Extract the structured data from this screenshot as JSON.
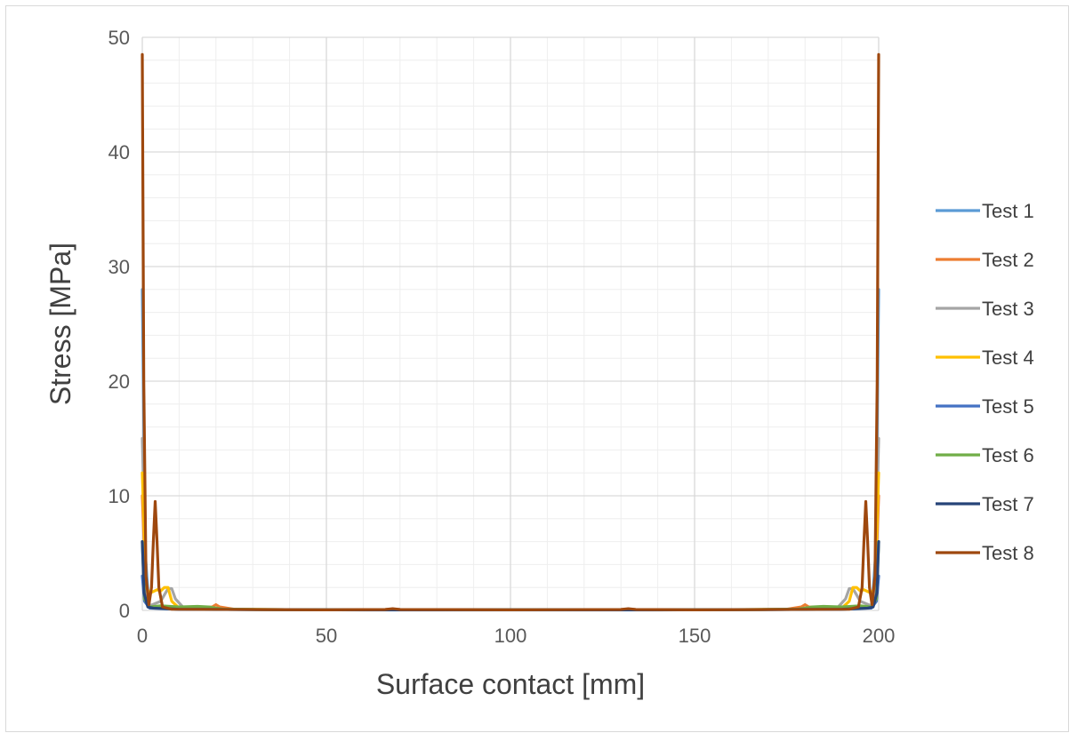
{
  "chart_data": {
    "type": "line",
    "title": "",
    "xlabel": "Surface contact [mm]",
    "ylabel": "Stress [MPa]",
    "xlim": [
      0,
      200
    ],
    "ylim": [
      0,
      50
    ],
    "xticks": [
      0,
      50,
      100,
      150,
      200
    ],
    "yticks": [
      0,
      10,
      20,
      30,
      40,
      50
    ],
    "x_tick_labels": [
      "0",
      "50",
      "100",
      "150",
      "200"
    ],
    "y_tick_labels": [
      "0",
      "10",
      "20",
      "30",
      "40",
      "50"
    ],
    "grid": {
      "major": true,
      "minor": true
    },
    "legend": {
      "placement": "right"
    },
    "series": [
      {
        "name": "Test 1",
        "color": "#5b9bd5",
        "points": [
          [
            0,
            28
          ],
          [
            0.8,
            5
          ],
          [
            1.8,
            0.4
          ],
          [
            5,
            0.15
          ],
          [
            10,
            0.1
          ],
          [
            20,
            0.08
          ],
          [
            40,
            0.05
          ],
          [
            60,
            0.04
          ],
          [
            100,
            0.04
          ],
          [
            140,
            0.04
          ],
          [
            160,
            0.05
          ],
          [
            180,
            0.08
          ],
          [
            190,
            0.1
          ],
          [
            195,
            0.15
          ],
          [
            198.2,
            0.4
          ],
          [
            199.2,
            5
          ],
          [
            200,
            28
          ]
        ]
      },
      {
        "name": "Test 2",
        "color": "#ed7d31",
        "points": [
          [
            0,
            10
          ],
          [
            1,
            1.5
          ],
          [
            2,
            0.3
          ],
          [
            8,
            0.2
          ],
          [
            15,
            0.25
          ],
          [
            19,
            0.3
          ],
          [
            20,
            0.5
          ],
          [
            21,
            0.3
          ],
          [
            25,
            0.1
          ],
          [
            40,
            0.05
          ],
          [
            66,
            0.08
          ],
          [
            68,
            0.12
          ],
          [
            70,
            0.08
          ],
          [
            100,
            0.05
          ],
          [
            130,
            0.08
          ],
          [
            132,
            0.12
          ],
          [
            134,
            0.08
          ],
          [
            160,
            0.05
          ],
          [
            175,
            0.1
          ],
          [
            179,
            0.3
          ],
          [
            180,
            0.5
          ],
          [
            181,
            0.3
          ],
          [
            185,
            0.25
          ],
          [
            192,
            0.2
          ],
          [
            198,
            0.3
          ],
          [
            199,
            1.5
          ],
          [
            200,
            10
          ]
        ]
      },
      {
        "name": "Test 3",
        "color": "#a5a5a5",
        "points": [
          [
            0,
            15
          ],
          [
            1,
            2
          ],
          [
            2,
            0.4
          ],
          [
            5,
            0.8
          ],
          [
            7,
            1.9
          ],
          [
            8,
            1.9
          ],
          [
            9,
            1
          ],
          [
            11,
            0.3
          ],
          [
            20,
            0.1
          ],
          [
            50,
            0.05
          ],
          [
            100,
            0.05
          ],
          [
            150,
            0.05
          ],
          [
            180,
            0.1
          ],
          [
            189,
            0.3
          ],
          [
            191,
            1
          ],
          [
            192,
            1.9
          ],
          [
            193,
            1.9
          ],
          [
            195,
            0.8
          ],
          [
            198,
            0.4
          ],
          [
            199,
            2
          ],
          [
            200,
            15
          ]
        ]
      },
      {
        "name": "Test 4",
        "color": "#ffc000",
        "points": [
          [
            0,
            12
          ],
          [
            1,
            2
          ],
          [
            2,
            1.5
          ],
          [
            4,
            1.8
          ],
          [
            5,
            1.7
          ],
          [
            6,
            2
          ],
          [
            7,
            2
          ],
          [
            8,
            0.8
          ],
          [
            10,
            0.2
          ],
          [
            20,
            0.1
          ],
          [
            50,
            0.05
          ],
          [
            100,
            0.05
          ],
          [
            150,
            0.05
          ],
          [
            180,
            0.1
          ],
          [
            190,
            0.2
          ],
          [
            192,
            0.8
          ],
          [
            193,
            2
          ],
          [
            194,
            2
          ],
          [
            195,
            1.7
          ],
          [
            196,
            1.8
          ],
          [
            198,
            1.5
          ],
          [
            199,
            2
          ],
          [
            200,
            12
          ]
        ]
      },
      {
        "name": "Test 5",
        "color": "#4472c4",
        "points": [
          [
            0,
            3
          ],
          [
            0.6,
            0.8
          ],
          [
            2,
            0.2
          ],
          [
            10,
            0.1
          ],
          [
            50,
            0.05
          ],
          [
            100,
            0.05
          ],
          [
            150,
            0.05
          ],
          [
            190,
            0.1
          ],
          [
            198,
            0.2
          ],
          [
            199.4,
            0.8
          ],
          [
            200,
            3
          ]
        ]
      },
      {
        "name": "Test 6",
        "color": "#70ad47",
        "points": [
          [
            0,
            6
          ],
          [
            0.6,
            1
          ],
          [
            2,
            0.3
          ],
          [
            5,
            0.4
          ],
          [
            10,
            0.3
          ],
          [
            15,
            0.35
          ],
          [
            18,
            0.3
          ],
          [
            22,
            0.1
          ],
          [
            50,
            0.05
          ],
          [
            100,
            0.05
          ],
          [
            150,
            0.05
          ],
          [
            178,
            0.1
          ],
          [
            182,
            0.3
          ],
          [
            185,
            0.35
          ],
          [
            190,
            0.3
          ],
          [
            195,
            0.4
          ],
          [
            198,
            0.3
          ],
          [
            199.4,
            1
          ],
          [
            200,
            6
          ]
        ]
      },
      {
        "name": "Test 7",
        "color": "#264478",
        "points": [
          [
            0,
            6
          ],
          [
            0.5,
            1.5
          ],
          [
            1.5,
            0.3
          ],
          [
            3,
            0.2
          ],
          [
            10,
            0.1
          ],
          [
            50,
            0.05
          ],
          [
            100,
            0.05
          ],
          [
            150,
            0.05
          ],
          [
            190,
            0.1
          ],
          [
            197,
            0.2
          ],
          [
            198.5,
            0.3
          ],
          [
            199.5,
            1.5
          ],
          [
            200,
            6
          ]
        ]
      },
      {
        "name": "Test 8",
        "color": "#9e480e",
        "points": [
          [
            0,
            48.5
          ],
          [
            0.4,
            20
          ],
          [
            1,
            3
          ],
          [
            1.8,
            0.5
          ],
          [
            2.5,
            2
          ],
          [
            3,
            6
          ],
          [
            3.5,
            9.5
          ],
          [
            4,
            6
          ],
          [
            4.5,
            2
          ],
          [
            5.5,
            0.3
          ],
          [
            8,
            0.1
          ],
          [
            50,
            0.05
          ],
          [
            66,
            0.08
          ],
          [
            68,
            0.15
          ],
          [
            70,
            0.08
          ],
          [
            100,
            0.05
          ],
          [
            130,
            0.08
          ],
          [
            132,
            0.15
          ],
          [
            134,
            0.08
          ],
          [
            150,
            0.05
          ],
          [
            192,
            0.1
          ],
          [
            194.5,
            0.3
          ],
          [
            195.5,
            2
          ],
          [
            196,
            6
          ],
          [
            196.5,
            9.5
          ],
          [
            197,
            6
          ],
          [
            197.5,
            2
          ],
          [
            198.2,
            0.5
          ],
          [
            199,
            3
          ],
          [
            199.6,
            20
          ],
          [
            200,
            48.5
          ]
        ]
      }
    ]
  }
}
